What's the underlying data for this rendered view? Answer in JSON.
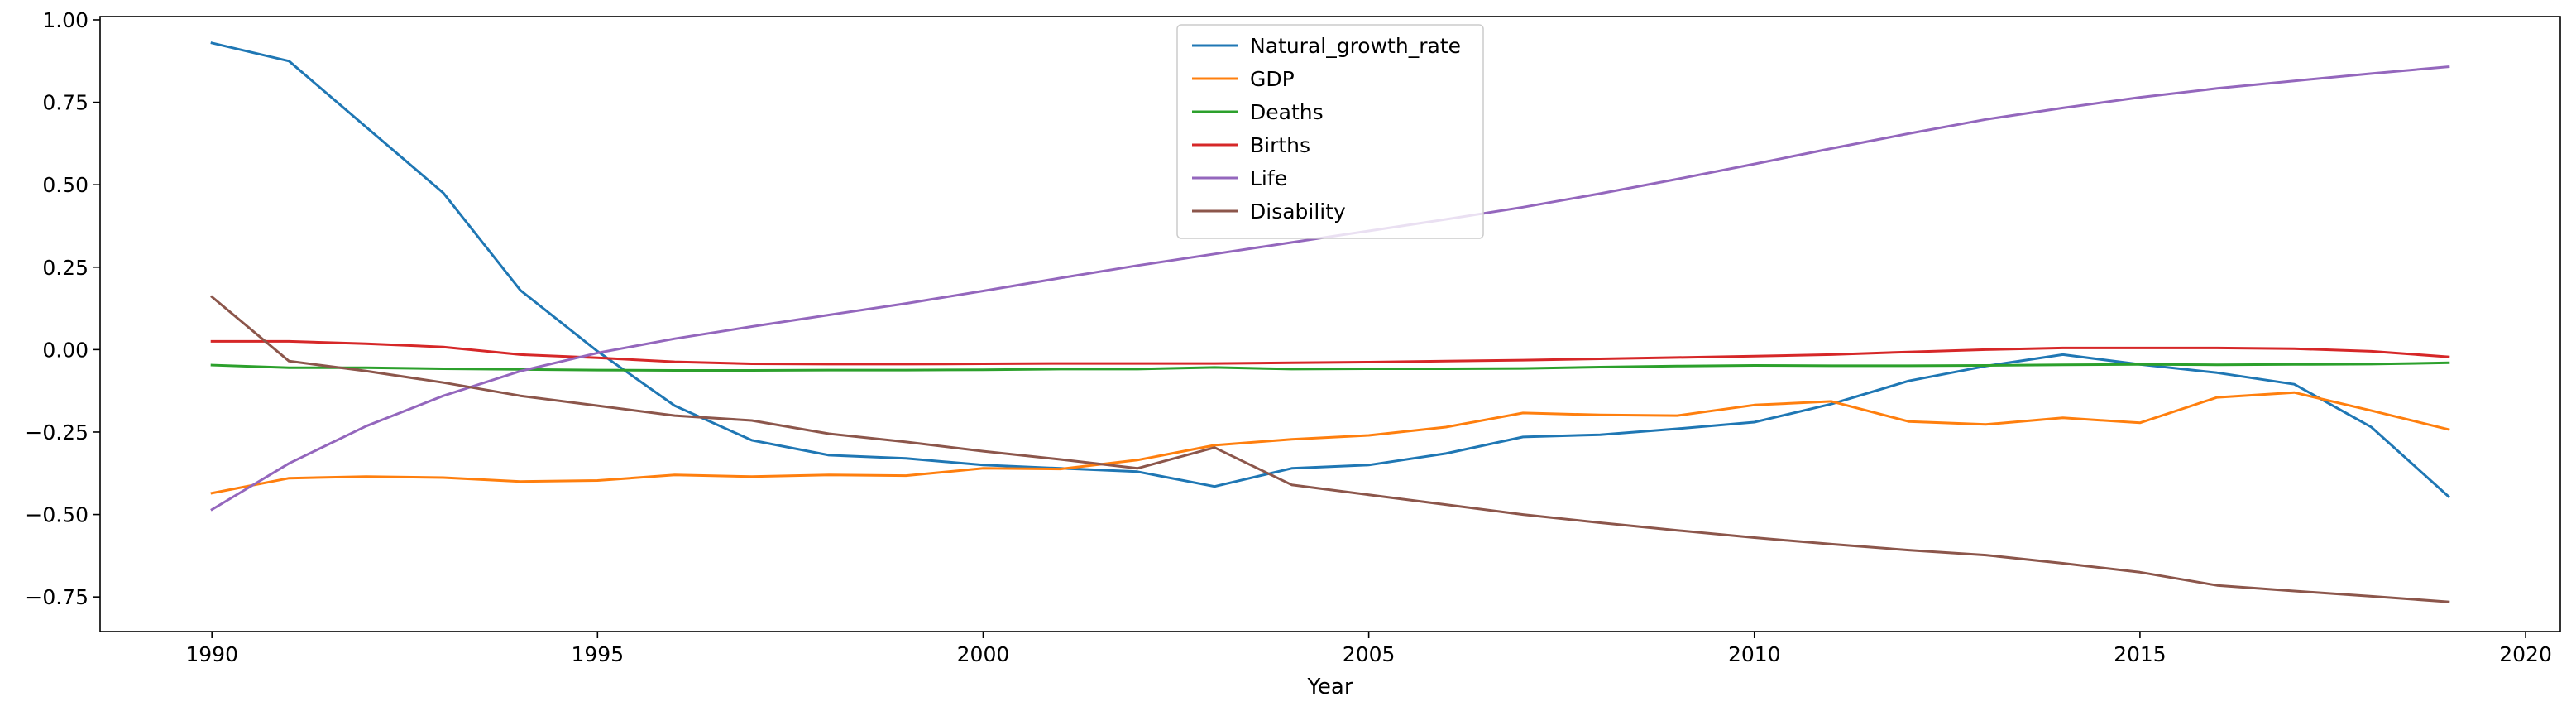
{
  "chart_data": {
    "type": "line",
    "title": "",
    "xlabel": "Year",
    "ylabel": "",
    "xlim": [
      1988.55,
      2020.45
    ],
    "ylim": [
      -0.855,
      1.01
    ],
    "xticks": [
      1990,
      1995,
      2000,
      2005,
      2010,
      2015,
      2020
    ],
    "yticks": [
      -0.75,
      -0.5,
      -0.25,
      0.0,
      0.25,
      0.5,
      0.75,
      1.0
    ],
    "ytick_labels": [
      "−0.75",
      "−0.50",
      "−0.25",
      "0.00",
      "0.25",
      "0.50",
      "0.75",
      "1.00"
    ],
    "grid": false,
    "legend_position": "top-center",
    "x": [
      1990,
      1991,
      1992,
      1993,
      1994,
      1995,
      1996,
      1997,
      1998,
      1999,
      2000,
      2001,
      2002,
      2003,
      2004,
      2005,
      2006,
      2007,
      2008,
      2009,
      2010,
      2011,
      2012,
      2013,
      2014,
      2015,
      2016,
      2017,
      2018,
      2019
    ],
    "series": [
      {
        "name": "Natural_growth_rate",
        "color": "#1f77b4",
        "values": [
          0.93,
          0.875,
          0.675,
          0.475,
          0.18,
          -0.005,
          -0.17,
          -0.275,
          -0.32,
          -0.33,
          -0.35,
          -0.36,
          -0.37,
          -0.415,
          -0.36,
          -0.35,
          -0.315,
          -0.265,
          -0.258,
          -0.24,
          -0.22,
          -0.165,
          -0.095,
          -0.05,
          -0.015,
          -0.045,
          -0.07,
          -0.105,
          -0.235,
          -0.445
        ]
      },
      {
        "name": "GDP",
        "color": "#ff7f0e",
        "values": [
          -0.435,
          -0.39,
          -0.385,
          -0.388,
          -0.4,
          -0.397,
          -0.38,
          -0.385,
          -0.38,
          -0.382,
          -0.36,
          -0.362,
          -0.335,
          -0.29,
          -0.272,
          -0.26,
          -0.235,
          -0.192,
          -0.198,
          -0.2,
          -0.168,
          -0.157,
          -0.218,
          -0.227,
          -0.207,
          -0.222,
          -0.145,
          -0.13,
          -0.185,
          -0.242
        ]
      },
      {
        "name": "Deaths",
        "color": "#2ca02c",
        "values": [
          -0.047,
          -0.055,
          -0.055,
          -0.058,
          -0.06,
          -0.062,
          -0.063,
          -0.063,
          -0.062,
          -0.062,
          -0.061,
          -0.059,
          -0.059,
          -0.054,
          -0.059,
          -0.058,
          -0.058,
          -0.057,
          -0.053,
          -0.05,
          -0.048,
          -0.049,
          -0.049,
          -0.048,
          -0.046,
          -0.045,
          -0.046,
          -0.045,
          -0.044,
          -0.04
        ]
      },
      {
        "name": "Births",
        "color": "#d62728",
        "values": [
          0.025,
          0.025,
          0.018,
          0.008,
          -0.015,
          -0.025,
          -0.037,
          -0.043,
          -0.044,
          -0.044,
          -0.043,
          -0.042,
          -0.042,
          -0.042,
          -0.04,
          -0.038,
          -0.035,
          -0.032,
          -0.028,
          -0.024,
          -0.02,
          -0.015,
          -0.007,
          0.0,
          0.005,
          0.005,
          0.005,
          0.003,
          -0.005,
          -0.022
        ]
      },
      {
        "name": "Life",
        "color": "#9467bd",
        "values": [
          -0.485,
          -0.345,
          -0.232,
          -0.14,
          -0.065,
          -0.01,
          0.033,
          0.07,
          0.105,
          0.14,
          0.178,
          0.217,
          0.255,
          0.29,
          0.325,
          0.36,
          0.395,
          0.432,
          0.473,
          0.517,
          0.563,
          0.61,
          0.655,
          0.698,
          0.733,
          0.765,
          0.792,
          0.815,
          0.837,
          0.858
        ]
      },
      {
        "name": "Disability",
        "color": "#8c564b",
        "values": [
          0.16,
          -0.035,
          -0.065,
          -0.1,
          -0.14,
          -0.17,
          -0.2,
          -0.215,
          -0.255,
          -0.28,
          -0.308,
          -0.333,
          -0.36,
          -0.297,
          -0.41,
          -0.44,
          -0.47,
          -0.5,
          -0.525,
          -0.548,
          -0.57,
          -0.59,
          -0.608,
          -0.623,
          -0.648,
          -0.675,
          -0.715,
          -0.732,
          -0.748,
          -0.765
        ]
      }
    ]
  }
}
